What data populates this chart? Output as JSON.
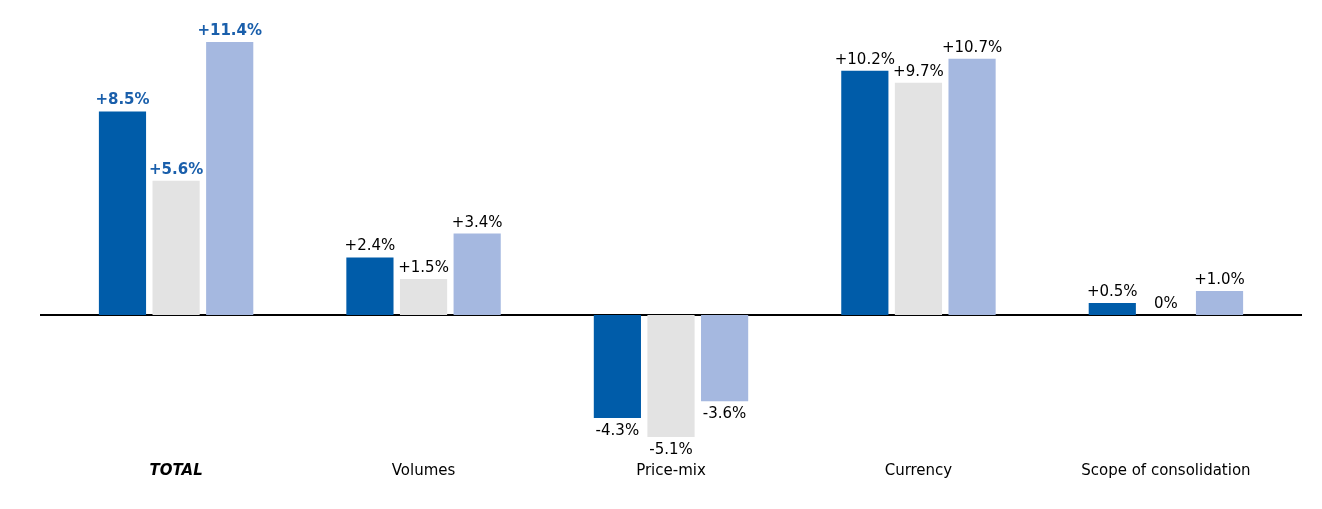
{
  "chart_data": {
    "type": "bar",
    "categories": [
      "TOTAL",
      "Volumes",
      "Price-mix",
      "Currency",
      "Scope of consolidation"
    ],
    "series": [
      {
        "color": "#005ca9",
        "values": [
          8.5,
          2.4,
          -4.3,
          10.2,
          0.5
        ],
        "value_labels": [
          "+8.5%",
          "+2.4%",
          "-4.3%",
          "+10.2%",
          "+0.5%"
        ]
      },
      {
        "color": "#e3e3e3",
        "values": [
          5.6,
          1.5,
          -5.1,
          9.7,
          0
        ],
        "value_labels": [
          "+5.6%",
          "+1.5%",
          "-5.1%",
          "+9.7%",
          "0%"
        ]
      },
      {
        "color": "#a5b8e0",
        "values": [
          11.4,
          3.4,
          -3.6,
          10.7,
          1.0
        ],
        "value_labels": [
          "+11.4%",
          "+3.4%",
          "-3.6%",
          "+10.7%",
          "+1.0%"
        ]
      }
    ]
  }
}
